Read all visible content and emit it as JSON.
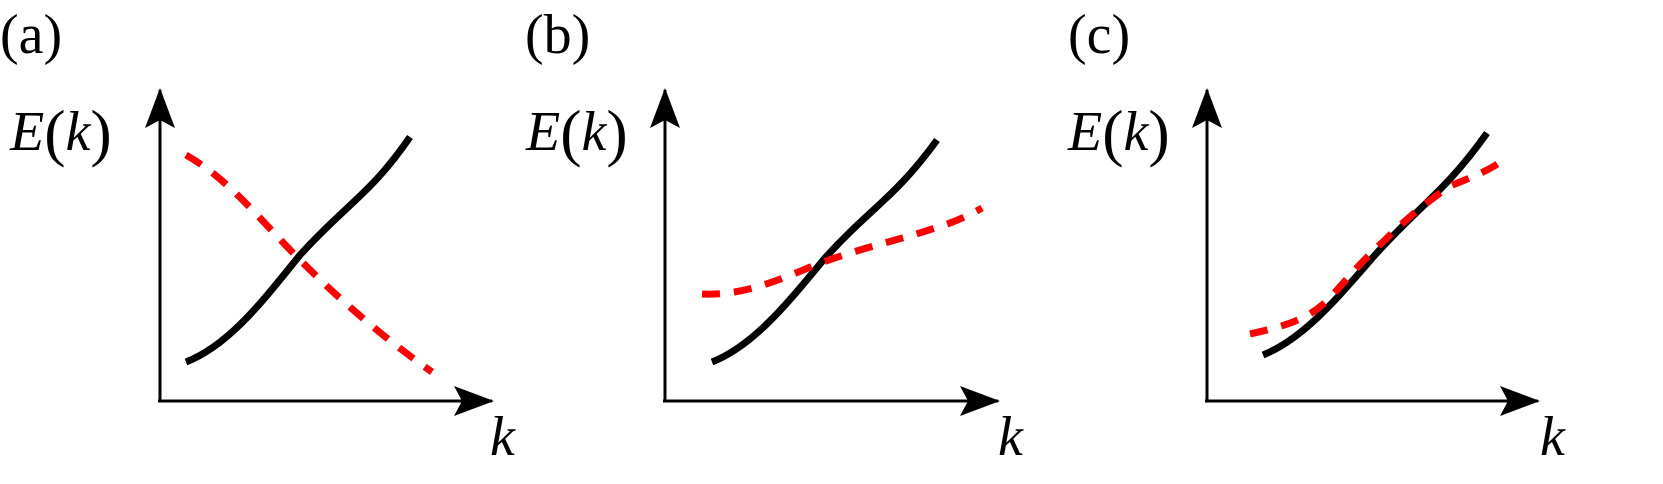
{
  "colors": {
    "axis": "#000000",
    "solid_curve": "#000000",
    "dashed_curve": "#ff0000"
  },
  "panels": [
    {
      "label": "(a)",
      "y_label_var": "E",
      "y_label_arg": "k",
      "x_label": "k",
      "dashed_trend": "decreasing",
      "relation": "crossing"
    },
    {
      "label": "(b)",
      "y_label_var": "E",
      "y_label_arg": "k",
      "x_label": "k",
      "dashed_trend": "increasing-shallow",
      "relation": "crossing"
    },
    {
      "label": "(c)",
      "y_label_var": "E",
      "y_label_arg": "k",
      "x_label": "k",
      "dashed_trend": "increasing-overlapping",
      "relation": "overlapping"
    }
  ]
}
